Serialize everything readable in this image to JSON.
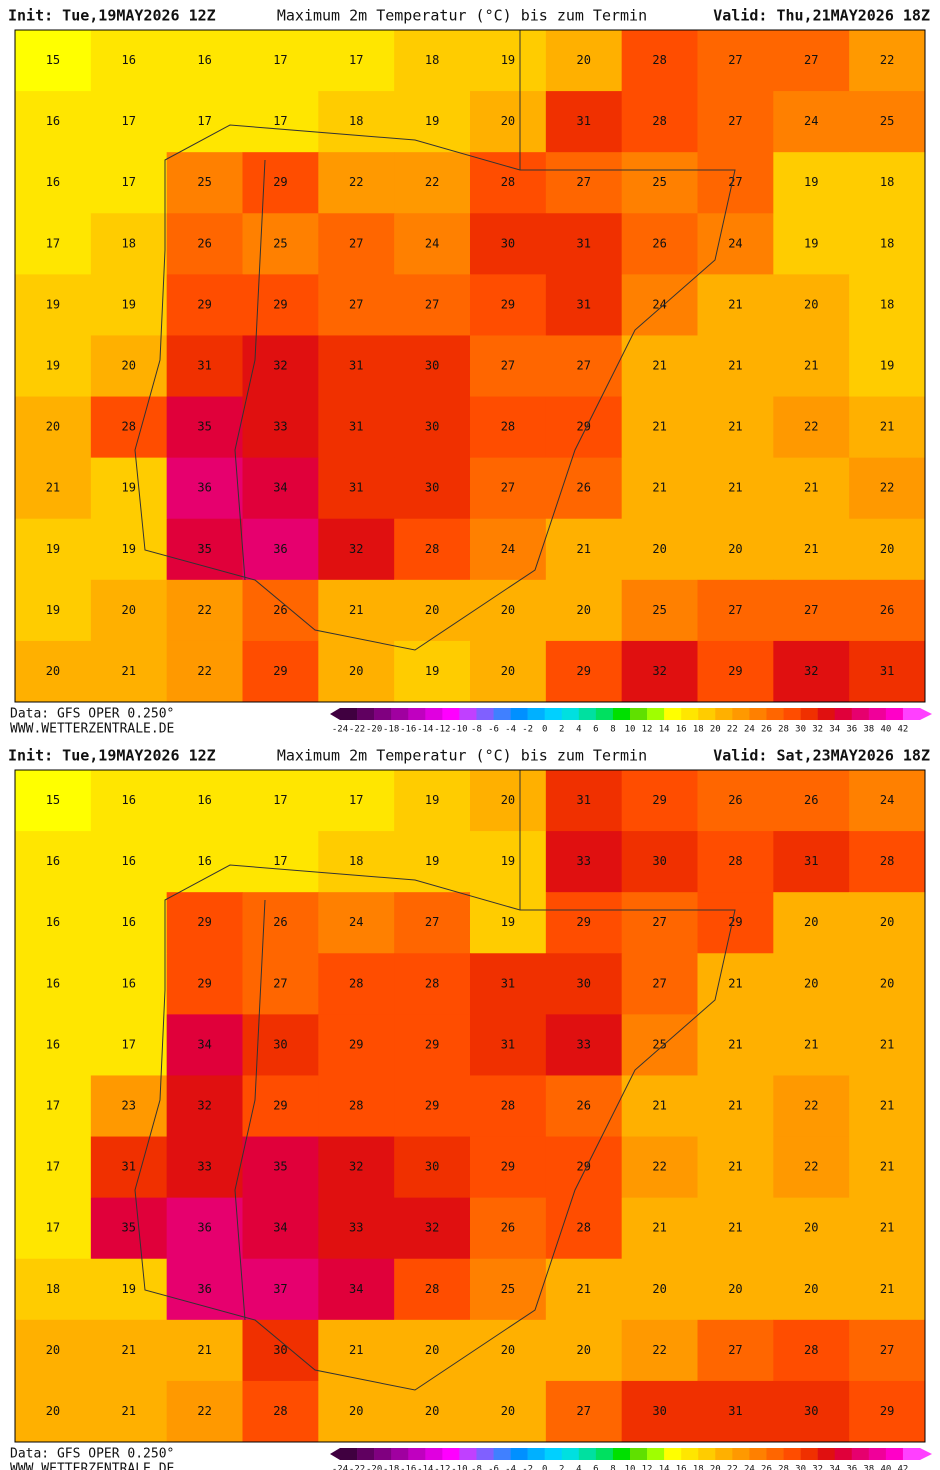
{
  "panels": [
    {
      "header": {
        "init": "Init: Tue,19MAY2026 12Z",
        "title": "Maximum 2m Temperatur (°C) bis zum Termin",
        "valid": "Valid: Thu,21MAY2026 18Z"
      },
      "grid": [
        [
          15,
          16,
          16,
          17,
          17,
          18,
          19,
          20,
          28,
          27,
          27,
          22
        ],
        [
          16,
          17,
          17,
          17,
          18,
          19,
          20,
          31,
          28,
          27,
          24,
          25
        ],
        [
          16,
          17,
          25,
          29,
          22,
          22,
          28,
          27,
          25,
          27,
          19,
          18
        ],
        [
          17,
          18,
          26,
          25,
          27,
          24,
          30,
          31,
          26,
          24,
          19,
          18
        ],
        [
          19,
          19,
          29,
          29,
          27,
          27,
          29,
          31,
          24,
          21,
          20,
          18
        ],
        [
          19,
          20,
          31,
          32,
          31,
          30,
          27,
          27,
          21,
          21,
          21,
          19
        ],
        [
          20,
          28,
          35,
          33,
          31,
          30,
          28,
          29,
          21,
          21,
          22,
          21
        ],
        [
          21,
          19,
          36,
          34,
          31,
          30,
          27,
          26,
          21,
          21,
          21,
          22
        ],
        [
          19,
          19,
          35,
          36,
          32,
          28,
          24,
          21,
          20,
          20,
          21,
          20
        ],
        [
          19,
          20,
          22,
          26,
          21,
          20,
          20,
          20,
          25,
          27,
          27,
          26
        ],
        [
          20,
          21,
          22,
          29,
          20,
          19,
          20,
          29,
          32,
          29,
          32,
          31
        ]
      ],
      "footer": {
        "data": "Data: GFS OPER 0.250°",
        "site": "WWW.WETTERZENTRALE.DE"
      }
    },
    {
      "header": {
        "init": "Init: Tue,19MAY2026 12Z",
        "title": "Maximum 2m Temperatur (°C) bis zum Termin",
        "valid": "Valid: Sat,23MAY2026 18Z"
      },
      "grid": [
        [
          15,
          16,
          16,
          17,
          17,
          19,
          20,
          31,
          29,
          26,
          26,
          24
        ],
        [
          16,
          16,
          16,
          17,
          18,
          19,
          19,
          33,
          30,
          28,
          31,
          28
        ],
        [
          16,
          16,
          29,
          26,
          24,
          27,
          19,
          29,
          27,
          29,
          20,
          20
        ],
        [
          16,
          16,
          29,
          27,
          28,
          28,
          31,
          30,
          27,
          21,
          20,
          20
        ],
        [
          16,
          17,
          34,
          30,
          29,
          29,
          31,
          33,
          25,
          21,
          21,
          21
        ],
        [
          17,
          23,
          32,
          29,
          28,
          29,
          28,
          26,
          21,
          21,
          22,
          21
        ],
        [
          17,
          31,
          33,
          35,
          32,
          30,
          29,
          29,
          22,
          21,
          22,
          21
        ],
        [
          17,
          35,
          36,
          34,
          33,
          32,
          26,
          28,
          21,
          21,
          20,
          21
        ],
        [
          18,
          19,
          36,
          37,
          34,
          28,
          25,
          21,
          20,
          20,
          20,
          21
        ],
        [
          20,
          21,
          21,
          30,
          21,
          20,
          20,
          20,
          22,
          27,
          28,
          27
        ],
        [
          20,
          21,
          22,
          28,
          20,
          20,
          20,
          27,
          30,
          31,
          30,
          29
        ]
      ],
      "footer": {
        "data": "Data: GFS OPER 0.250°",
        "site": "WWW.WETTERZENTRALE.DE"
      }
    }
  ],
  "colorbar": {
    "labels": [
      -24,
      -22,
      -20,
      -18,
      -16,
      -14,
      -12,
      -10,
      -8,
      -6,
      -4,
      -2,
      0,
      2,
      4,
      6,
      8,
      10,
      12,
      14,
      16,
      18,
      20,
      22,
      24,
      26,
      28,
      30,
      32,
      34,
      36,
      38,
      40,
      42
    ],
    "colors": [
      "#400040",
      "#600060",
      "#800080",
      "#a000a0",
      "#c000c0",
      "#e000e0",
      "#ff00ff",
      "#c040ff",
      "#8060ff",
      "#4080ff",
      "#0090ff",
      "#00b0ff",
      "#00d0ff",
      "#00e0e0",
      "#00e0a0",
      "#00e060",
      "#00e000",
      "#60e000",
      "#a0ff00",
      "#ffff00",
      "#ffe600",
      "#ffcc00",
      "#ffb000",
      "#ff9900",
      "#ff8000",
      "#ff6600",
      "#ff4d00",
      "#f03000",
      "#e01010",
      "#e0003a",
      "#e6006e",
      "#f0009a",
      "#ff00c8",
      "#ff40ff"
    ]
  }
}
